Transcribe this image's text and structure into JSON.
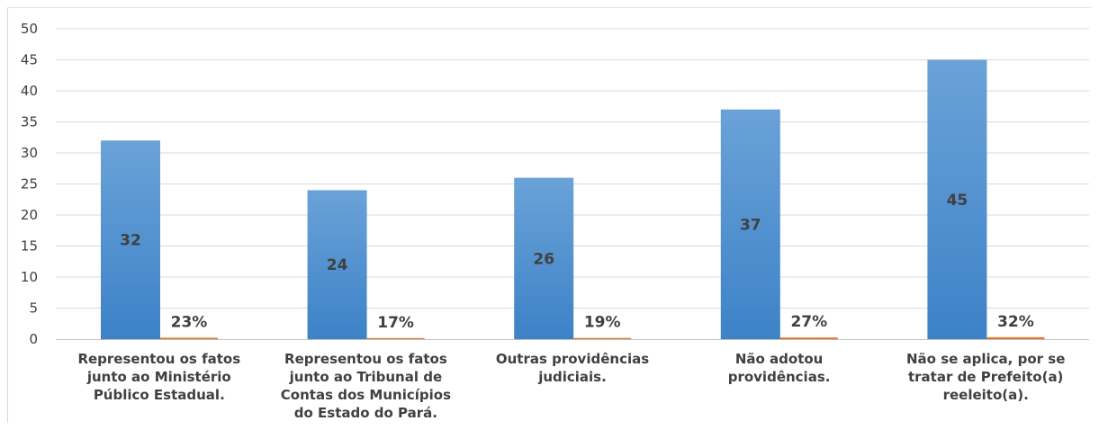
{
  "chart_data": {
    "type": "bar",
    "categories": [
      [
        "Representou os fatos",
        "junto ao Ministério",
        "Público Estadual."
      ],
      [
        "Representou os fatos",
        "junto ao Tribunal de",
        "Contas dos Municípios",
        "do Estado do Pará."
      ],
      [
        "Outras providências",
        "judiciais."
      ],
      [
        "Não adotou",
        "providências."
      ],
      [
        "Não se aplica, por se",
        "tratar de Prefeito(a)",
        "reeleito(a)."
      ]
    ],
    "series": [
      {
        "values": [
          32,
          24,
          26,
          37,
          45
        ],
        "labels": [
          "32",
          "24",
          "26",
          "37",
          "45"
        ],
        "color": "#5b9bd5"
      },
      {
        "values": [
          0.23,
          0.17,
          0.19,
          0.27,
          0.32
        ],
        "labels": [
          "23%",
          "17%",
          "19%",
          "27%",
          "32%"
        ],
        "color": "#ed7d31"
      }
    ],
    "ylim": [
      0,
      50
    ],
    "yticks": [
      "0",
      "5",
      "10",
      "15",
      "20",
      "25",
      "30",
      "35",
      "40",
      "45",
      "50"
    ],
    "grid": true,
    "legend": "none"
  }
}
